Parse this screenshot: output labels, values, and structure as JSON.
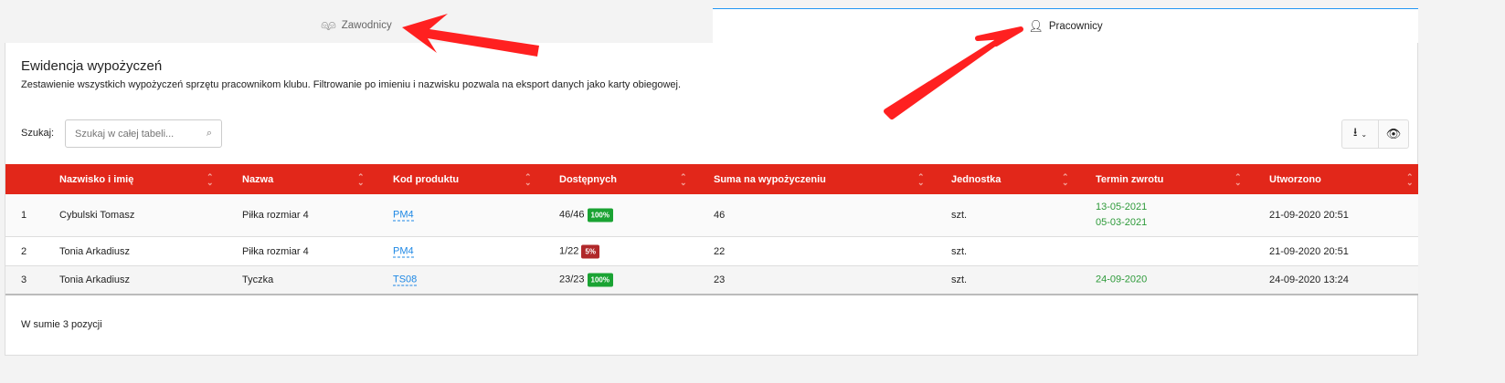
{
  "tabs": [
    {
      "label": "Zawodnicy",
      "icon": "two-people-icon",
      "active": false
    },
    {
      "label": "Pracownicy",
      "icon": "person-icon",
      "active": true
    }
  ],
  "panel": {
    "title": "Ewidencja wypożyczeń",
    "description": "Zestawienie wszystkich wypożyczeń sprzętu pracownikom klubu. Filtrowanie po imieniu i nazwisku pozwala na eksport danych jako karty obiegowej.",
    "search_label": "Szukaj:",
    "search_placeholder": "Szukaj w całej tabeli...",
    "search_value": ""
  },
  "toolbar": {
    "export_icon": "export-icon",
    "visibility_icon": "eye-icon"
  },
  "table": {
    "columns": [
      "Nazwisko i imię",
      "Nazwa",
      "Kod produktu",
      "Dostępnych",
      "Suma na wypożyczeniu",
      "Jednostka",
      "Termin zwrotu",
      "Utworzono"
    ],
    "rows": [
      {
        "no": "1",
        "name": "Cybulski Tomasz",
        "item": "Piłka rozmiar 4",
        "code": "PM4",
        "available": "46/46",
        "badge": "100%",
        "badge_color": "#1aa333",
        "total": "46",
        "unit": "szt.",
        "return_dates": [
          "13-05-2021",
          "05-03-2021"
        ],
        "created": "21-09-2020 20:51"
      },
      {
        "no": "2",
        "name": "Tonia Arkadiusz",
        "item": "Piłka rozmiar 4",
        "code": "PM4",
        "available": "1/22",
        "badge": "5%",
        "badge_color": "#b0282a",
        "total": "22",
        "unit": "szt.",
        "return_dates": [],
        "created": "21-09-2020 20:51"
      },
      {
        "no": "3",
        "name": "Tonia Arkadiusz",
        "item": "Tyczka",
        "code": "TS08",
        "available": "23/23",
        "badge": "100%",
        "badge_color": "#1aa333",
        "total": "23",
        "unit": "szt.",
        "return_dates": [
          "24-09-2020"
        ],
        "created": "24-09-2020 13:24"
      }
    ]
  },
  "footer": {
    "summary": "W sumie 3 pozycji"
  },
  "colors": {
    "header": "#e2271a",
    "accent": "#2196f3",
    "arrow": "#ff2020"
  }
}
